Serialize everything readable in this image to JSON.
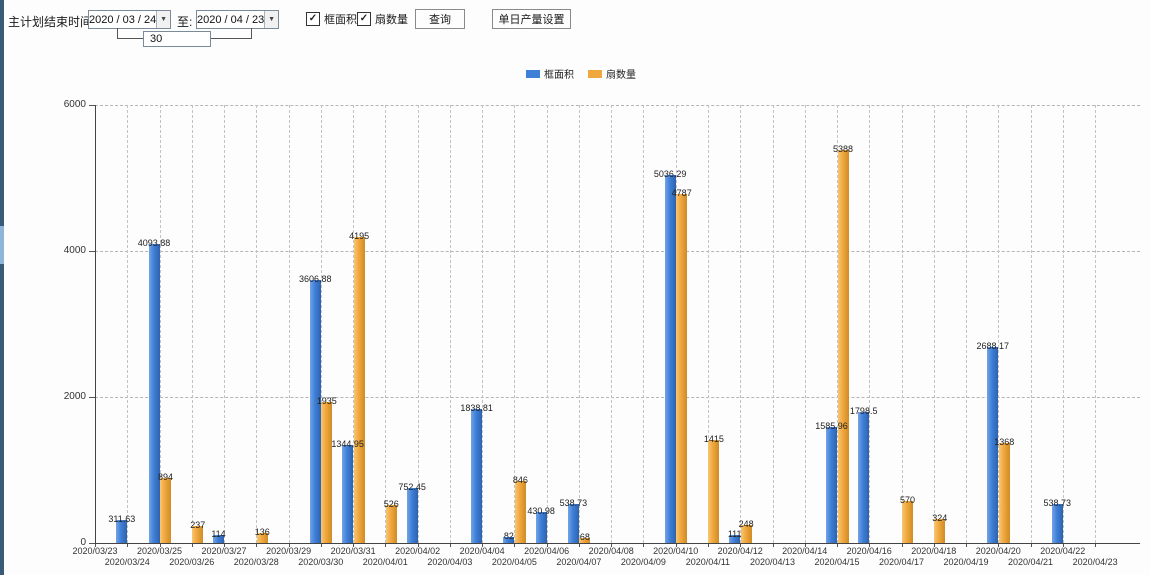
{
  "toolbar": {
    "end_time_label": "主计划结束时间:",
    "start_date": "2020 / 03 / 24",
    "to_label": "至:",
    "end_date": "2020 / 04 / 23",
    "interval_days": "30",
    "checkboxes": [
      {
        "label": "框面积",
        "checked": true
      },
      {
        "label": "扇数量",
        "checked": true
      }
    ],
    "query_button": "查询",
    "daily_output_button": "单日产量设置"
  },
  "legend": {
    "items": [
      {
        "label": "框面积",
        "color": "#3e7fd8"
      },
      {
        "label": "扇数量",
        "color": "#f0a73d"
      }
    ]
  },
  "chart_data": {
    "type": "bar",
    "title": "",
    "xlabel": "",
    "ylabel": "",
    "ylim": [
      0,
      6000
    ],
    "yticks": [
      0,
      2000,
      4000,
      6000
    ],
    "grid": true,
    "legend_position": "top",
    "categories": [
      "2020/03/23",
      "2020/03/24",
      "2020/03/25",
      "2020/03/26",
      "2020/03/27",
      "2020/03/28",
      "2020/03/29",
      "2020/03/30",
      "2020/03/31",
      "2020/04/01",
      "2020/04/02",
      "2020/04/03",
      "2020/04/04",
      "2020/04/05",
      "2020/04/06",
      "2020/04/07",
      "2020/04/08",
      "2020/04/09",
      "2020/04/10",
      "2020/04/11",
      "2020/04/12",
      "2020/04/13",
      "2020/04/14",
      "2020/04/15",
      "2020/04/16",
      "2020/04/17",
      "2020/04/18",
      "2020/04/19",
      "2020/04/20",
      "2020/04/21",
      "2020/04/22",
      "2020/04/23"
    ],
    "series": [
      {
        "name": "框面积",
        "color": "#3e7fd8",
        "values": [
          null,
          311.63,
          4093.88,
          null,
          114,
          null,
          null,
          3606.88,
          1344.95,
          null,
          752.45,
          null,
          1838.81,
          82,
          430.98,
          538.73,
          null,
          null,
          5036.29,
          null,
          111,
          null,
          null,
          1585.96,
          1798.5,
          null,
          null,
          null,
          2688.17,
          null,
          538.73,
          null
        ]
      },
      {
        "name": "扇数量",
        "color": "#f0a73d",
        "values": [
          null,
          null,
          894,
          237,
          null,
          136,
          null,
          1935,
          4195,
          526,
          null,
          null,
          null,
          846,
          null,
          68,
          null,
          null,
          4787,
          1415,
          248,
          null,
          null,
          5388,
          null,
          570,
          324,
          null,
          1368,
          null,
          null,
          null
        ]
      }
    ]
  }
}
